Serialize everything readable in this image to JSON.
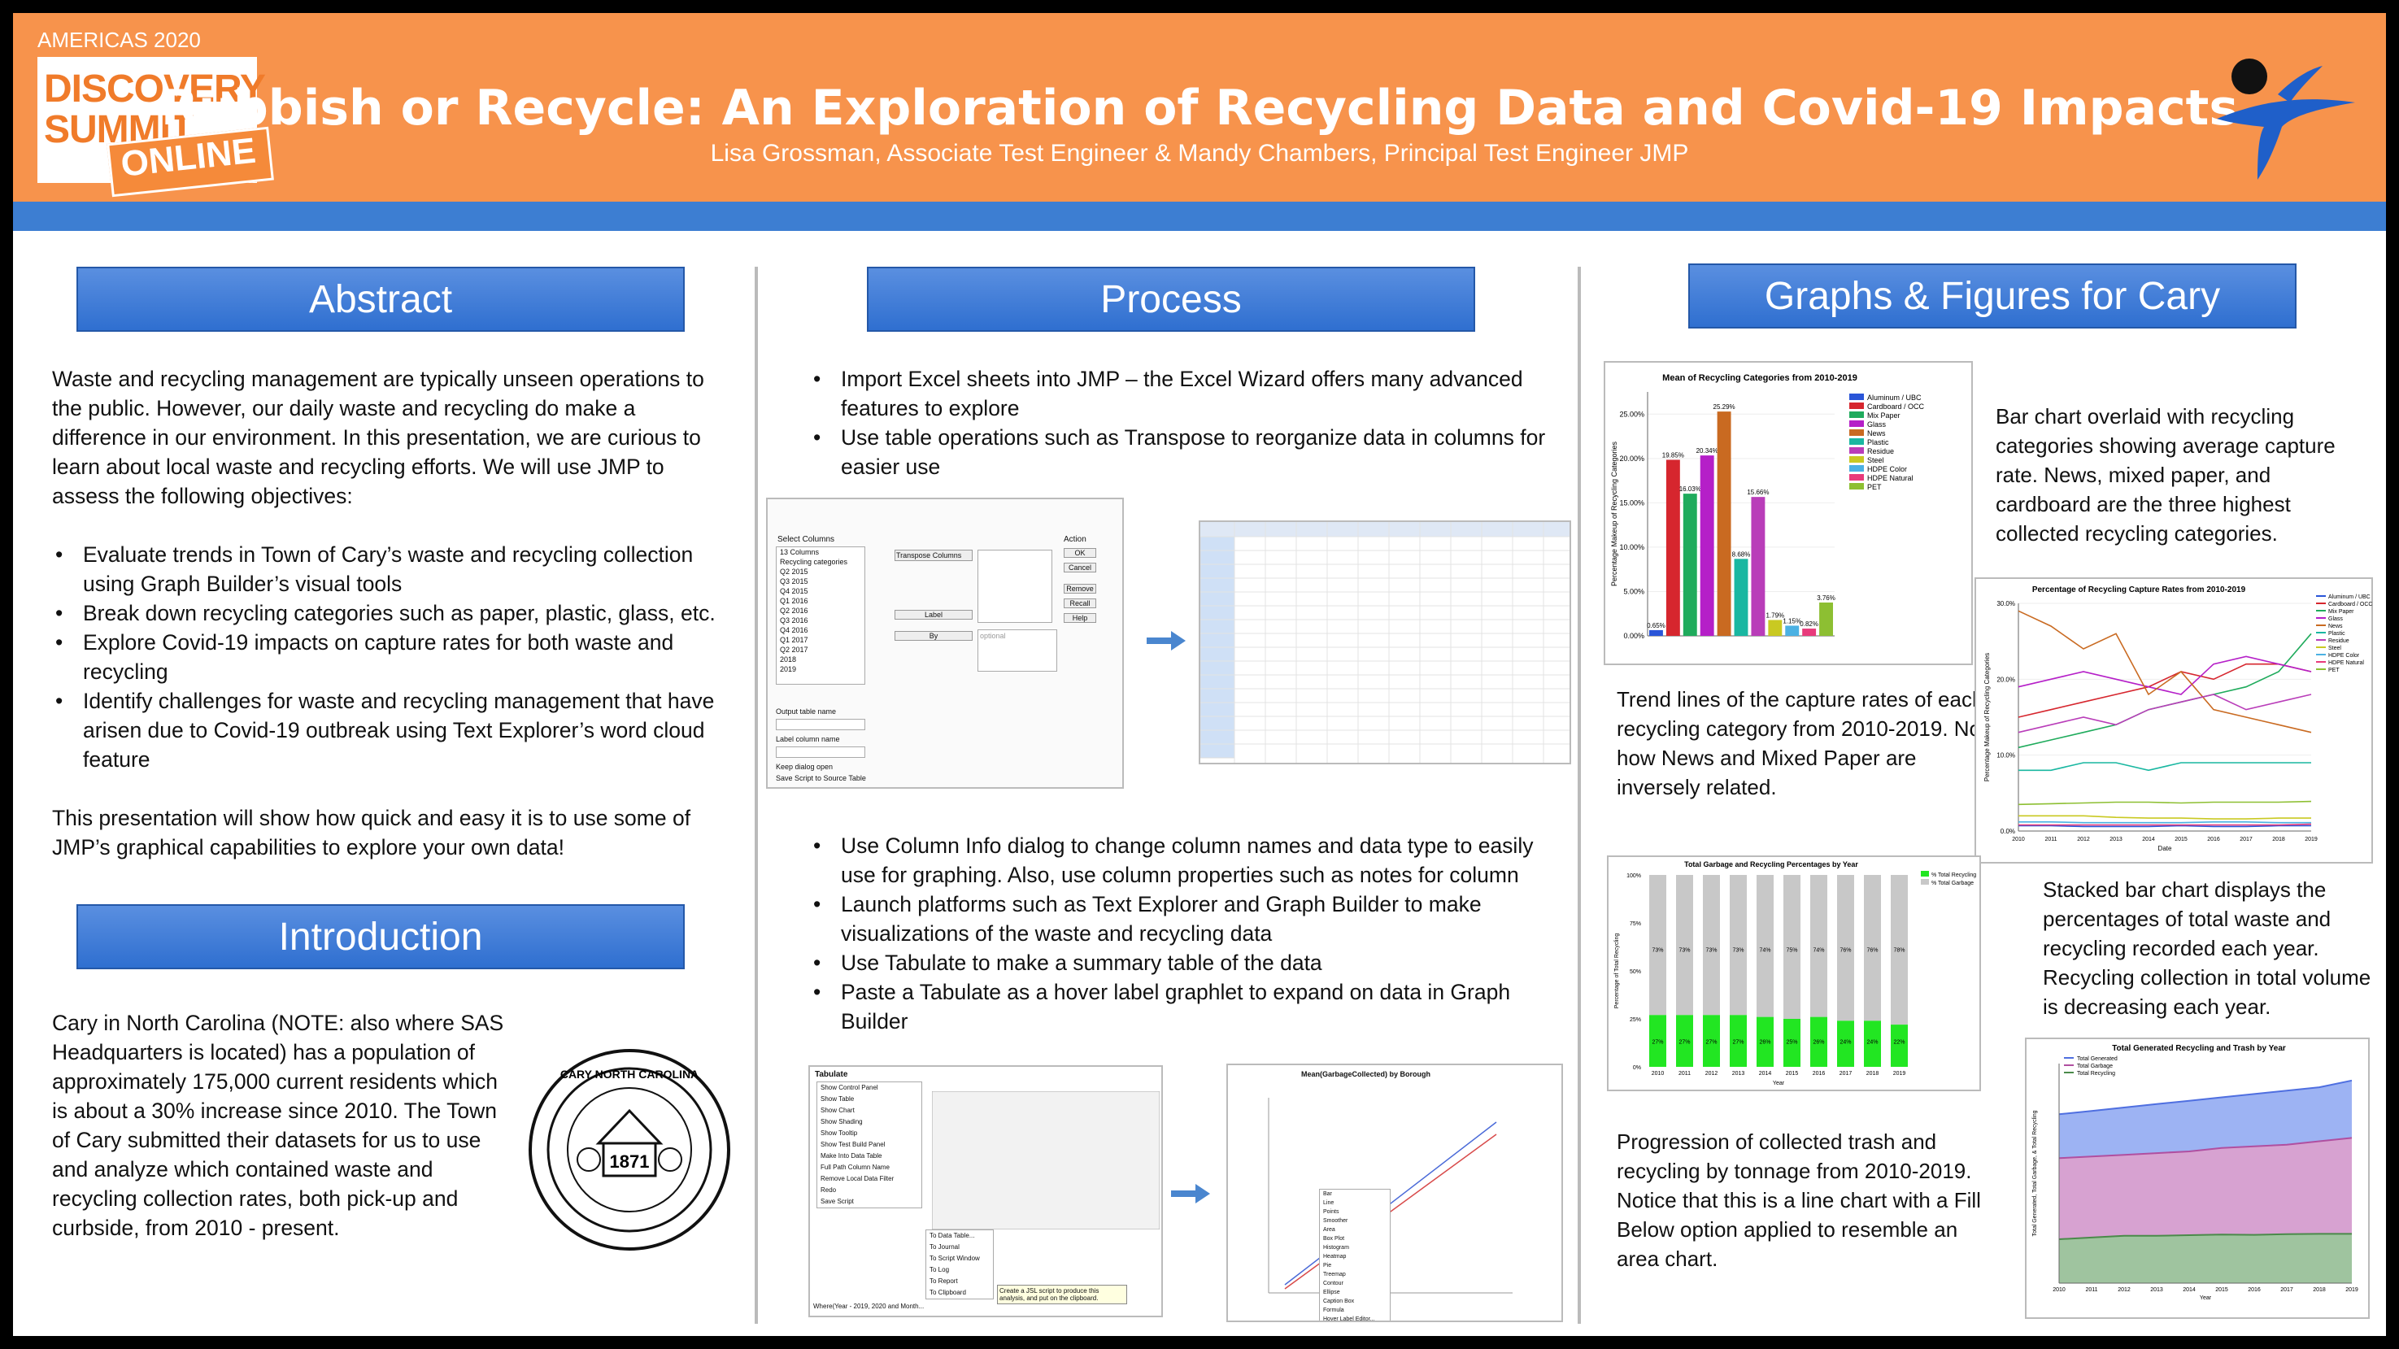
{
  "header": {
    "event": "AMERICAS 2020",
    "logo_line1": "DISCOVERY",
    "logo_line2": "SUMMIT",
    "logo_line3": "ONLINE",
    "title": "Rubbish or Recycle: An Exploration of Recycling Data and Covid-19 Impacts",
    "authors": "Lisa Grossman, Associate Test Engineer & Mandy Chambers, Principal Test Engineer JMP"
  },
  "abstract": {
    "heading": "Abstract",
    "intro": "Waste and recycling management are typically unseen operations to the public. However, our daily waste and recycling do make a difference in our environment. In this presentation, we are curious to learn about local waste and recycling efforts. We will use JMP to assess the following objectives:",
    "bullets": [
      "Evaluate trends in Town of Cary’s waste and recycling collection using Graph Builder’s visual tools",
      "Break down recycling categories such as paper, plastic, glass, etc.",
      "Explore Covid-19 impacts on capture rates for both waste and recycling",
      "Identify challenges for waste and recycling management that have arisen due to Covid-19 outbreak using Text Explorer’s word cloud feature"
    ],
    "closing": "This presentation will show how quick and easy it is to use some of JMP’s graphical capabilities to explore your own data!"
  },
  "introduction": {
    "heading": "Introduction",
    "text": "Cary in North Carolina (NOTE: also where SAS Headquarters is located) has a population of approximately 175,000 current residents which is about a 30% increase since 2010. The Town of Cary submitted their datasets for us to use and analyze which contained waste and recycling collection rates, both pick-up and curbside, from 2010 - present.",
    "seal_top": "CARY NORTH CAROLINA",
    "seal_year": "1871"
  },
  "process": {
    "heading": "Process",
    "bullets_top": [
      "Import Excel sheets into JMP – the Excel Wizard offers many advanced features to explore",
      "Use table operations such as Transpose to reorganize data in columns for easier use"
    ],
    "bullets_bottom": [
      "Use Column Info dialog to change column names and data type to easily use for graphing. Also, use column properties such as notes for column",
      "Launch platforms such as Text Explorer and Graph Builder to make visualizations of the waste and recycling data",
      "Use Tabulate to make a summary table of the data",
      "Paste a Tabulate as a hover label graphlet to expand on data in Graph Builder"
    ],
    "shot1": {
      "title": "Select Columns",
      "columns": [
        "13 Columns",
        "Recycling categories",
        "Q2 2015",
        "Q3 2015",
        "Q4 2015",
        "Q1 2016",
        "Q2 2016",
        "Q3 2016",
        "Q4 2016",
        "Q1 2017",
        "Q2 2017",
        "2018",
        "2019"
      ],
      "transpose_label": "Transpose Columns",
      "label_btn": "Label",
      "by_btn": "By",
      "action": "Action",
      "buttons": [
        "OK",
        "Cancel",
        "Remove",
        "Recall",
        "Help"
      ],
      "optional": "optional",
      "output_label": "Output table name",
      "label_col": "Label column name",
      "keep": "Keep dialog open",
      "save": "Save Script to Source Table"
    },
    "shot2": {
      "title": "Tabulate",
      "menu": [
        "Show Control Panel",
        "Show Table",
        "Show Chart",
        "Show Shading",
        "Show Tooltip",
        "Show Test Build Panel",
        "Make Into Data Table",
        "Full Path Column Name",
        "Remove Local Data Filter",
        "Redo",
        "Save Script"
      ],
      "submenu": [
        "To Data Table...",
        "To Journal",
        "To Script Window",
        "To Log",
        "To Report",
        "To Clipboard"
      ],
      "where": "Where(Year - 2019, 2020 and Month...",
      "tooltip": "Create a JSL script to produce this analysis, and put on the clipboard."
    },
    "shot3": {
      "title": "Mean(GarbageCollected) by Borough",
      "menu": [
        "Bar",
        "Line",
        "Points",
        "Smoother",
        "Area",
        "Box Plot",
        "Histogram",
        "Heatmap",
        "Pie",
        "Treemap",
        "Contour",
        "Ellipse",
        "Caption Box",
        "Formula",
        "Hover Label Editor..."
      ]
    }
  },
  "graphs": {
    "heading": "Graphs & Figures for Cary",
    "cap1": "Bar chart overlaid with recycling categories showing average capture rate. News, mixed paper, and cardboard are the three highest collected recycling categories.",
    "cap2": "Trend lines of the capture rates of each recycling category from 2010-2019. Note how News and Mixed Paper are inversely related.",
    "cap3": "Stacked bar chart displays the percentages of total waste and recycling recorded each year. Recycling collection in total volume is decreasing each year.",
    "cap4": "Progression of collected trash and recycling by tonnage from 2010-2019. Notice that this is a line chart with a Fill Below option applied to resemble an area chart."
  },
  "chart_data": [
    {
      "type": "bar",
      "title": "Mean of Recycling Categories from 2010-2019",
      "ylabel": "Percentage Makeup of Recycling Categories",
      "ylim": [
        0,
        27.5
      ],
      "categories": [
        "Aluminum / UBC",
        "Cardboard / OCC",
        "Mix Paper",
        "Glass",
        "News",
        "Plastic",
        "Residue",
        "Steel",
        "HDPE Color",
        "HDPE Natural",
        "PET"
      ],
      "values": [
        0.65,
        19.85,
        16.03,
        20.34,
        25.29,
        8.68,
        15.66,
        1.79,
        1.15,
        0.82,
        3.76
      ],
      "data_labels": [
        "0.65%",
        "19.85%",
        "16.03%",
        "20.34%",
        "25.29%",
        "8.68%",
        "15.66%",
        "1.79%",
        "1.15%",
        "0.82%",
        "3.76%"
      ],
      "colors": [
        "#2a55d8",
        "#d6262e",
        "#1fab5c",
        "#b51fc8",
        "#c96a21",
        "#19b7a1",
        "#b93db9",
        "#c9c922",
        "#4bb1e3",
        "#e83a7b",
        "#8dbf32"
      ],
      "yticks": [
        "0.00%",
        "5.00%",
        "10.00%",
        "15.00%",
        "20.00%",
        "25.00%"
      ],
      "legend": "top-right"
    },
    {
      "type": "line",
      "title": "Percentage of Recycling Capture Rates from 2010-2019",
      "xlabel": "Date",
      "ylabel": "Percentage Makeup of Recycling Categories",
      "x": [
        2010,
        2011,
        2012,
        2013,
        2014,
        2015,
        2016,
        2017,
        2018,
        2019
      ],
      "ylim": [
        0,
        30
      ],
      "yticks": [
        "0.0%",
        "10.0%",
        "20.0%",
        "30.0%"
      ],
      "series": [
        {
          "name": "Aluminum / UBC",
          "color": "#2a55d8",
          "values": [
            0.7,
            0.7,
            0.6,
            0.6,
            0.6,
            0.7,
            0.6,
            0.6,
            0.7,
            0.7
          ]
        },
        {
          "name": "Cardboard / OCC",
          "color": "#d6262e",
          "values": [
            15,
            16,
            17,
            18,
            19,
            21,
            20,
            22,
            22,
            21
          ]
        },
        {
          "name": "Mix Paper",
          "color": "#1fab5c",
          "values": [
            11,
            12,
            13,
            14,
            16,
            17,
            18,
            19,
            21,
            26
          ]
        },
        {
          "name": "Glass",
          "color": "#b51fc8",
          "values": [
            19,
            20,
            21,
            20,
            19,
            18,
            22,
            23,
            22,
            21
          ]
        },
        {
          "name": "News",
          "color": "#c96a21",
          "values": [
            29,
            27,
            24,
            26,
            18,
            21,
            16,
            15,
            14,
            13
          ]
        },
        {
          "name": "Plastic",
          "color": "#19b7a1",
          "values": [
            8,
            8,
            9,
            9,
            8,
            9,
            9,
            9,
            9,
            9
          ]
        },
        {
          "name": "Residue",
          "color": "#b93db9",
          "values": [
            13,
            14,
            15,
            14,
            16,
            17,
            18,
            16,
            17,
            18
          ]
        },
        {
          "name": "Steel",
          "color": "#c9c922",
          "values": [
            2,
            2,
            2,
            1.8,
            1.7,
            1.7,
            1.6,
            1.6,
            1.7,
            1.7
          ]
        },
        {
          "name": "HDPE Color",
          "color": "#4bb1e3",
          "values": [
            1.2,
            1.2,
            1.1,
            1.1,
            1.1,
            1.1,
            1.2,
            1.2,
            1.1,
            1.1
          ]
        },
        {
          "name": "HDPE Natural",
          "color": "#e83a7b",
          "values": [
            0.8,
            0.8,
            0.8,
            0.8,
            0.8,
            0.8,
            0.8,
            0.8,
            0.8,
            0.9
          ]
        },
        {
          "name": "PET",
          "color": "#8dbf32",
          "values": [
            3.5,
            3.6,
            3.7,
            3.8,
            3.8,
            3.7,
            3.8,
            3.8,
            3.8,
            3.9
          ]
        }
      ],
      "legend": "top-right"
    },
    {
      "type": "bar",
      "title": "Total Garbage and Recycling Percentages by Year",
      "xlabel": "Year",
      "ylabel": "Percentage of Total Recycling",
      "categories": [
        "2010",
        "2011",
        "2012",
        "2013",
        "2014",
        "2015",
        "2016",
        "2017",
        "2018",
        "2019"
      ],
      "yticks": [
        "0%",
        "25%",
        "50%",
        "75%",
        "100%"
      ],
      "series": [
        {
          "name": "% Total Recycling",
          "color": "#22e622",
          "values": [
            27,
            27,
            27,
            27,
            26,
            25,
            26,
            24,
            24,
            22
          ]
        },
        {
          "name": "% Total Garbage",
          "color": "#c8c8c8",
          "values": [
            73,
            73,
            73,
            73,
            74,
            75,
            74,
            76,
            76,
            78
          ]
        }
      ],
      "data_labels_top": [
        "73%",
        "73%",
        "73%",
        "73%",
        "74%",
        "75%",
        "74%",
        "76%",
        "76%",
        "78%"
      ],
      "data_labels_bottom": [
        "27%",
        "27%",
        "27%",
        "27%",
        "26%",
        "25%",
        "26%",
        "24%",
        "24%",
        "22%"
      ],
      "legend": "top-right"
    },
    {
      "type": "area",
      "title": "Total Generated Recycling and Trash by Year",
      "xlabel": "Year",
      "ylabel": "Total Generated, Total Garbage, & Total Recycling",
      "x": [
        "2010",
        "2011",
        "2012",
        "2013",
        "2014",
        "2015",
        "2016",
        "2017",
        "2018",
        "2019"
      ],
      "series": [
        {
          "name": "Total Generated",
          "color": "#4f6fe0",
          "values": [
            50,
            51,
            52,
            53,
            54,
            55,
            56,
            57,
            58,
            60
          ]
        },
        {
          "name": "Total Garbage",
          "color": "#b04fa0",
          "values": [
            37,
            37.5,
            38,
            38.5,
            39,
            40,
            40.5,
            41,
            42,
            43
          ]
        },
        {
          "name": "Total Recycling",
          "color": "#4a8a4a",
          "values": [
            13,
            13.5,
            14,
            14,
            14.2,
            14.4,
            14.3,
            14.5,
            14.6,
            14.6
          ]
        }
      ],
      "ylim": [
        0,
        65
      ],
      "legend": "top-left"
    }
  ]
}
